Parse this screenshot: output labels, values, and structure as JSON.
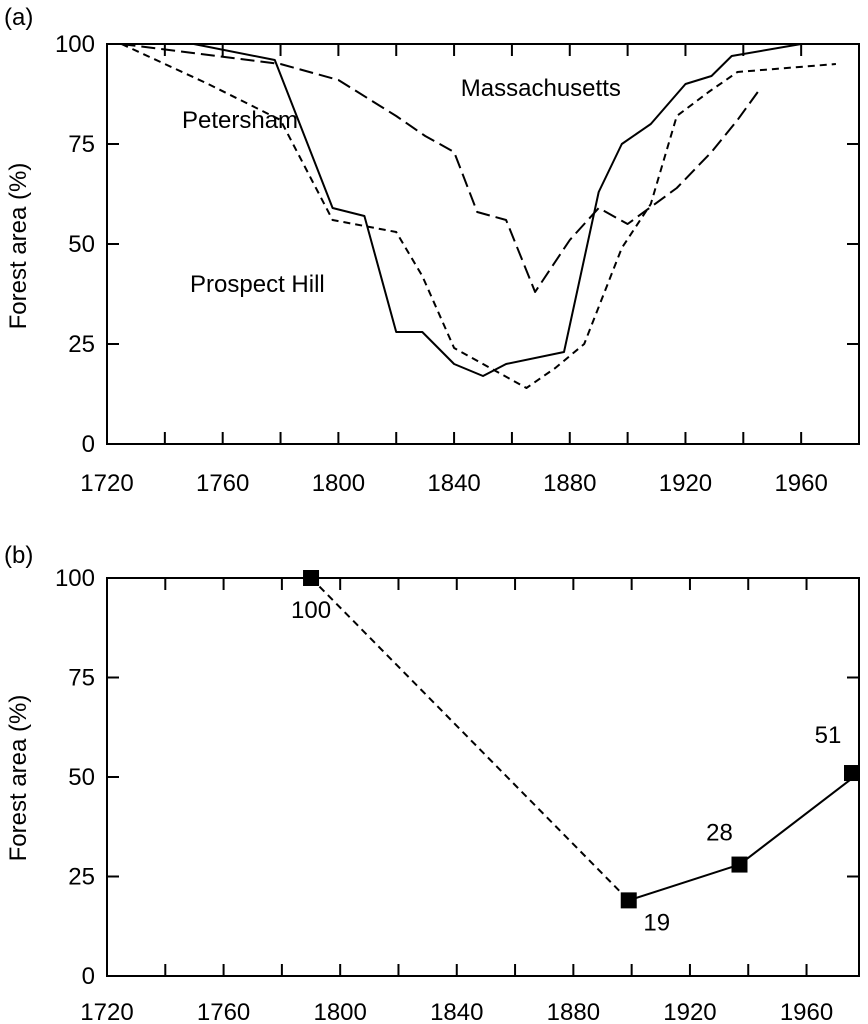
{
  "chart_data": [
    {
      "type": "line",
      "panel_label": "(a)",
      "ylabel": "Forest area (%)",
      "xlim": [
        1720,
        1980
      ],
      "ylim": [
        0,
        100
      ],
      "x_ticks": [
        1720,
        1760,
        1800,
        1840,
        1880,
        1920,
        1960
      ],
      "x_minor_ticks": [
        1740,
        1780,
        1820,
        1860,
        1900,
        1940
      ],
      "y_ticks": [
        0,
        25,
        50,
        75,
        100
      ],
      "grid": false,
      "series": [
        {
          "name": "Prospect Hill",
          "style": "solid",
          "points": [
            [
              1725,
              100
            ],
            [
              1750,
              100
            ],
            [
              1778,
              96
            ],
            [
              1798,
              59
            ],
            [
              1809,
              57
            ],
            [
              1820,
              28
            ],
            [
              1829,
              28
            ],
            [
              1840,
              20
            ],
            [
              1850,
              17
            ],
            [
              1858,
              20
            ],
            [
              1878,
              23
            ],
            [
              1890,
              63
            ],
            [
              1898,
              75
            ],
            [
              1908,
              80
            ],
            [
              1920,
              90
            ],
            [
              1929,
              92
            ],
            [
              1936,
              97
            ],
            [
              1960,
              100
            ]
          ]
        },
        {
          "name": "Petersham",
          "style": "dashed",
          "points": [
            [
              1725,
              100
            ],
            [
              1755,
              90
            ],
            [
              1780,
              81
            ],
            [
              1798,
              56
            ],
            [
              1820,
              53
            ],
            [
              1829,
              42
            ],
            [
              1840,
              24
            ],
            [
              1850,
              20
            ],
            [
              1865,
              14
            ],
            [
              1875,
              19
            ],
            [
              1885,
              25
            ],
            [
              1898,
              49
            ],
            [
              1908,
              60
            ],
            [
              1917,
              82
            ],
            [
              1928,
              88
            ],
            [
              1938,
              93
            ],
            [
              1972,
              95
            ]
          ]
        },
        {
          "name": "Massachusetts",
          "style": "longdash",
          "points": [
            [
              1725,
              100
            ],
            [
              1780,
              95
            ],
            [
              1800,
              91
            ],
            [
              1820,
              82
            ],
            [
              1830,
              77
            ],
            [
              1840,
              73
            ],
            [
              1848,
              58
            ],
            [
              1858,
              56
            ],
            [
              1868,
              38
            ],
            [
              1880,
              51
            ],
            [
              1890,
              59
            ],
            [
              1900,
              55
            ],
            [
              1917,
              64
            ],
            [
              1929,
              73
            ],
            [
              1938,
              81
            ],
            [
              1945,
              88
            ]
          ]
        }
      ],
      "annotations": [
        {
          "text": "Massachusetts",
          "x": 1870,
          "y": 87
        },
        {
          "text": "Petersham",
          "x": 1766,
          "y": 79
        },
        {
          "text": "Prospect Hill",
          "x": 1772,
          "y": 38
        }
      ]
    },
    {
      "type": "line",
      "panel_label": "(b)",
      "ylabel": "Forest area (%)",
      "xlim": [
        1720,
        1978
      ],
      "ylim": [
        0,
        100
      ],
      "x_ticks": [
        1720,
        1760,
        1800,
        1840,
        1880,
        1920,
        1960
      ],
      "x_minor_ticks": [
        1740,
        1780,
        1820,
        1860,
        1900,
        1940
      ],
      "y_ticks": [
        0,
        25,
        50,
        75,
        100
      ],
      "grid": false,
      "points": [
        {
          "x": 1790,
          "y": 100,
          "label": "100"
        },
        {
          "x": 1899,
          "y": 19,
          "label": "19"
        },
        {
          "x": 1937,
          "y": 28,
          "label": "28"
        },
        {
          "x": 1978,
          "y": 51,
          "label": "51"
        }
      ],
      "segments": [
        {
          "from": 0,
          "to": 1,
          "style": "dashed"
        },
        {
          "from": 1,
          "to": 2,
          "style": "solid"
        },
        {
          "from": 2,
          "to": 3,
          "style": "solid"
        }
      ]
    }
  ]
}
